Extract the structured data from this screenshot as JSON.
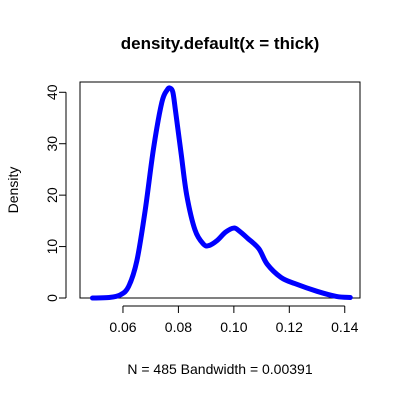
{
  "chart_data": {
    "type": "line",
    "title": "density.default(x = thick)",
    "xlabel": "N = 485   Bandwidth = 0.00391",
    "ylabel": "Density",
    "xlim": [
      0.0445,
      0.1455
    ],
    "ylim": [
      0,
      42
    ],
    "xticks": [
      0.06,
      0.08,
      0.1,
      0.12,
      0.14
    ],
    "xtick_labels": [
      "0.06",
      "0.08",
      "0.10",
      "0.12",
      "0.14"
    ],
    "yticks": [
      0,
      10,
      20,
      30,
      40
    ],
    "ytick_labels": [
      "0",
      "10",
      "20",
      "30",
      "40"
    ],
    "grid": false,
    "series": [
      {
        "color": "#0000ff",
        "x": [
          0.049,
          0.055,
          0.059,
          0.062,
          0.065,
          0.068,
          0.071,
          0.074,
          0.076,
          0.077,
          0.078,
          0.079,
          0.081,
          0.083,
          0.086,
          0.089,
          0.091,
          0.094,
          0.097,
          0.1,
          0.102,
          0.105,
          0.109,
          0.112,
          0.117,
          0.122,
          0.13,
          0.137,
          0.142
        ],
        "y": [
          0.0,
          0.1,
          0.6,
          2.2,
          7.2,
          17.0,
          29.0,
          38.0,
          40.5,
          40.8,
          40.0,
          36.2,
          28.0,
          20.0,
          13.2,
          10.5,
          10.2,
          11.2,
          12.8,
          13.6,
          13.0,
          11.6,
          9.6,
          6.6,
          4.0,
          2.8,
          1.3,
          0.3,
          0.1
        ]
      }
    ]
  }
}
